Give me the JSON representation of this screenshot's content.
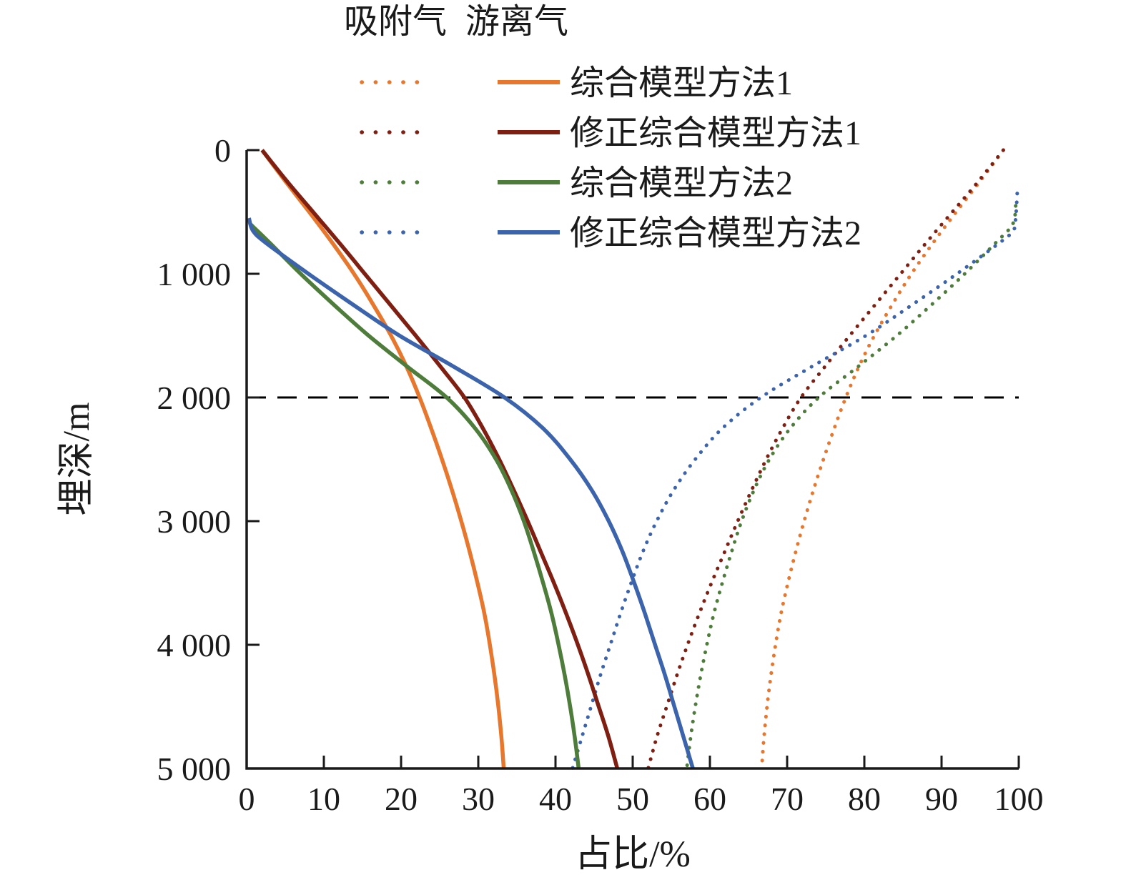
{
  "chart_data": {
    "type": "line",
    "title": "",
    "xlabel": "占比/%",
    "ylabel": "埋深/m",
    "xlim": [
      0,
      100
    ],
    "ylim": [
      0,
      5000
    ],
    "y_axis_inverted": true,
    "grid": false,
    "x_ticks": [
      0,
      10,
      20,
      30,
      40,
      50,
      60,
      70,
      80,
      90,
      100
    ],
    "x_tick_labels": [
      "0",
      "10",
      "20",
      "30",
      "40",
      "50",
      "60",
      "70",
      "80",
      "90",
      "100"
    ],
    "y_ticks": [
      0,
      1000,
      2000,
      3000,
      4000,
      5000
    ],
    "y_tick_labels": [
      "0",
      "1 000",
      "2 000",
      "3 000",
      "4 000",
      "5 000"
    ],
    "reference_line": {
      "depth_m": 2000,
      "style": "dashed",
      "color": "#000000"
    },
    "colors": {
      "orange": "#E8772E",
      "maroon": "#7E1F12",
      "green": "#4E7C3B",
      "blue": "#3C64AC"
    },
    "legend": {
      "position": "top",
      "column_headers": [
        "吸附气",
        "游离气"
      ],
      "entries": [
        {
          "label": "综合模型方法1",
          "color": "#E8772E"
        },
        {
          "label": "修正综合模型方法1",
          "color": "#7E1F12"
        },
        {
          "label": "综合模型方法2",
          "color": "#4E7C3B"
        },
        {
          "label": "修正综合模型方法2",
          "color": "#3C64AC"
        }
      ]
    },
    "series": [
      {
        "id": "adsorbed-model1",
        "name": "综合模型方法1",
        "gas": "吸附气",
        "style": "dotted",
        "color": "#E8772E",
        "points": [
          [
            0,
            98
          ],
          [
            250,
            95
          ],
          [
            500,
            91.9
          ],
          [
            750,
            88.9
          ],
          [
            1000,
            86.1
          ],
          [
            1250,
            83.6
          ],
          [
            1500,
            81.3
          ],
          [
            1750,
            79.3
          ],
          [
            2000,
            77.6
          ],
          [
            2250,
            76.1
          ],
          [
            2500,
            74.7
          ],
          [
            2750,
            73.4
          ],
          [
            3000,
            72.2
          ],
          [
            3250,
            71.1
          ],
          [
            3500,
            70.1
          ],
          [
            3750,
            69.2
          ],
          [
            4000,
            68.5
          ],
          [
            4250,
            67.9
          ],
          [
            4500,
            67.4
          ],
          [
            4750,
            67
          ],
          [
            5000,
            66.7
          ]
        ]
      },
      {
        "id": "adsorbed-model1-corrected",
        "name": "修正综合模型方法1",
        "gas": "吸附气",
        "style": "dotted",
        "color": "#7E1F12",
        "points": [
          [
            0,
            98
          ],
          [
            250,
            94.8
          ],
          [
            500,
            91.4
          ],
          [
            750,
            88
          ],
          [
            1000,
            84.7
          ],
          [
            1250,
            81.4
          ],
          [
            1500,
            78.1
          ],
          [
            1750,
            74.9
          ],
          [
            2000,
            71.8
          ],
          [
            2250,
            69.4
          ],
          [
            2500,
            67.3
          ],
          [
            2750,
            65.4
          ],
          [
            3000,
            63.6
          ],
          [
            3250,
            61.9
          ],
          [
            3500,
            60.2
          ],
          [
            3750,
            58.6
          ],
          [
            4000,
            57.1
          ],
          [
            4250,
            55.7
          ],
          [
            4500,
            54.4
          ],
          [
            4750,
            53.1
          ],
          [
            5000,
            52
          ]
        ]
      },
      {
        "id": "adsorbed-model2",
        "name": "综合模型方法2",
        "gas": "吸附气",
        "style": "dotted",
        "color": "#4E7C3B",
        "points": [
          [
            450,
            99.6
          ],
          [
            600,
            99.2
          ],
          [
            750,
            97
          ],
          [
            1000,
            93
          ],
          [
            1250,
            88.7
          ],
          [
            1500,
            84.2
          ],
          [
            1750,
            79.2
          ],
          [
            2000,
            74.1
          ],
          [
            2250,
            70.4
          ],
          [
            2500,
            67.7
          ],
          [
            2750,
            65.7
          ],
          [
            3000,
            64.1
          ],
          [
            3250,
            62.8
          ],
          [
            3500,
            61.6
          ],
          [
            3750,
            60.5
          ],
          [
            4000,
            59.6
          ],
          [
            4250,
            58.8
          ],
          [
            4500,
            58.1
          ],
          [
            4750,
            57.5
          ],
          [
            5000,
            57
          ]
        ]
      },
      {
        "id": "adsorbed-model2-corrected",
        "name": "修正综合模型方法2",
        "gas": "吸附气",
        "style": "dotted",
        "color": "#3C64AC",
        "points": [
          [
            350,
            99.8
          ],
          [
            550,
            99.6
          ],
          [
            650,
            99.3
          ],
          [
            750,
            97.5
          ],
          [
            1000,
            92
          ],
          [
            1250,
            86.2
          ],
          [
            1500,
            80.2
          ],
          [
            1750,
            73.2
          ],
          [
            2000,
            66.6
          ],
          [
            2250,
            61.6
          ],
          [
            2500,
            58.1
          ],
          [
            2750,
            55.3
          ],
          [
            3000,
            53.1
          ],
          [
            3250,
            51.3
          ],
          [
            3500,
            49.8
          ],
          [
            3750,
            48.4
          ],
          [
            4000,
            47.1
          ],
          [
            4250,
            45.8
          ],
          [
            4500,
            44.6
          ],
          [
            4750,
            43.4
          ],
          [
            5000,
            42.2
          ]
        ]
      },
      {
        "id": "free-model1",
        "name": "综合模型方法1",
        "gas": "游离气",
        "style": "solid",
        "color": "#E8772E",
        "points": [
          [
            0,
            2
          ],
          [
            250,
            5
          ],
          [
            500,
            8.1
          ],
          [
            750,
            11.1
          ],
          [
            1000,
            13.9
          ],
          [
            1250,
            16.4
          ],
          [
            1500,
            18.7
          ],
          [
            1750,
            20.7
          ],
          [
            2000,
            22.4
          ],
          [
            2250,
            23.9
          ],
          [
            2500,
            25.3
          ],
          [
            2750,
            26.6
          ],
          [
            3000,
            27.8
          ],
          [
            3250,
            28.9
          ],
          [
            3500,
            29.9
          ],
          [
            3750,
            30.8
          ],
          [
            4000,
            31.5
          ],
          [
            4250,
            32.1
          ],
          [
            4500,
            32.6
          ],
          [
            4750,
            33
          ],
          [
            5000,
            33.3
          ]
        ]
      },
      {
        "id": "free-model1-corrected",
        "name": "修正综合模型方法1",
        "gas": "游离气",
        "style": "solid",
        "color": "#7E1F12",
        "points": [
          [
            0,
            2
          ],
          [
            250,
            5.2
          ],
          [
            500,
            8.6
          ],
          [
            750,
            12
          ],
          [
            1000,
            15.3
          ],
          [
            1250,
            18.6
          ],
          [
            1500,
            21.9
          ],
          [
            1750,
            25.1
          ],
          [
            2000,
            28.2
          ],
          [
            2250,
            30.6
          ],
          [
            2500,
            32.7
          ],
          [
            2750,
            34.6
          ],
          [
            3000,
            36.4
          ],
          [
            3250,
            38.1
          ],
          [
            3500,
            39.8
          ],
          [
            3750,
            41.4
          ],
          [
            4000,
            42.9
          ],
          [
            4250,
            44.3
          ],
          [
            4500,
            45.6
          ],
          [
            4750,
            46.9
          ],
          [
            5000,
            48
          ]
        ]
      },
      {
        "id": "free-model2",
        "name": "综合模型方法2",
        "gas": "游离气",
        "style": "solid",
        "color": "#4E7C3B",
        "points": [
          [
            600,
            0.5
          ],
          [
            750,
            3
          ],
          [
            1000,
            7
          ],
          [
            1250,
            11.3
          ],
          [
            1500,
            15.8
          ],
          [
            1750,
            20.8
          ],
          [
            2000,
            25.9
          ],
          [
            2250,
            29.6
          ],
          [
            2500,
            32.3
          ],
          [
            2750,
            34.3
          ],
          [
            3000,
            35.9
          ],
          [
            3250,
            37.2
          ],
          [
            3500,
            38.4
          ],
          [
            3750,
            39.5
          ],
          [
            4000,
            40.4
          ],
          [
            4250,
            41.2
          ],
          [
            4500,
            41.9
          ],
          [
            4750,
            42.5
          ],
          [
            5000,
            43
          ]
        ]
      },
      {
        "id": "free-model2-corrected",
        "name": "修正综合模型方法2",
        "gas": "游离气",
        "style": "solid",
        "color": "#3C64AC",
        "points": [
          [
            550,
            0.3
          ],
          [
            650,
            0.8
          ],
          [
            750,
            2.5
          ],
          [
            1000,
            8
          ],
          [
            1250,
            13.8
          ],
          [
            1500,
            19.8
          ],
          [
            1750,
            26.8
          ],
          [
            2000,
            33.4
          ],
          [
            2250,
            38.4
          ],
          [
            2500,
            41.9
          ],
          [
            2750,
            44.7
          ],
          [
            3000,
            46.9
          ],
          [
            3250,
            48.7
          ],
          [
            3500,
            50.2
          ],
          [
            3750,
            51.6
          ],
          [
            4000,
            52.9
          ],
          [
            4250,
            54.2
          ],
          [
            4500,
            55.4
          ],
          [
            4750,
            56.6
          ],
          [
            5000,
            57.8
          ]
        ]
      }
    ]
  }
}
